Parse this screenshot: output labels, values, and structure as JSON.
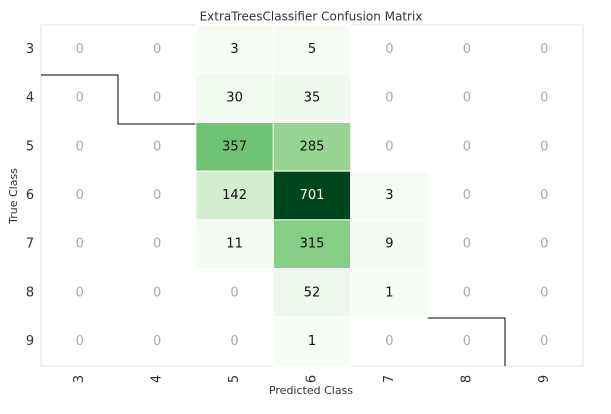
{
  "chart_data": {
    "type": "heatmap",
    "title": "ExtraTreesClassifier Confusion Matrix",
    "x_label": "Predicted Class",
    "y_label": "True Class",
    "x_categories": [
      "3",
      "4",
      "5",
      "6",
      "7",
      "8",
      "9"
    ],
    "y_categories": [
      "3",
      "4",
      "5",
      "6",
      "7",
      "8",
      "9"
    ],
    "values": [
      [
        0,
        0,
        3,
        5,
        0,
        0,
        0
      ],
      [
        0,
        0,
        30,
        35,
        0,
        0,
        0
      ],
      [
        0,
        0,
        357,
        285,
        0,
        0,
        0
      ],
      [
        0,
        0,
        142,
        701,
        3,
        0,
        0
      ],
      [
        0,
        0,
        11,
        315,
        9,
        0,
        0
      ],
      [
        0,
        0,
        0,
        52,
        1,
        0,
        0
      ],
      [
        0,
        0,
        0,
        1,
        0,
        0,
        0
      ]
    ],
    "colormap": [
      "#f7fcf5",
      "#e5f5e0",
      "#c7e9c0",
      "#a1d99b",
      "#74c476",
      "#41ab5d",
      "#238b45",
      "#006d2c",
      "#00441b"
    ]
  }
}
